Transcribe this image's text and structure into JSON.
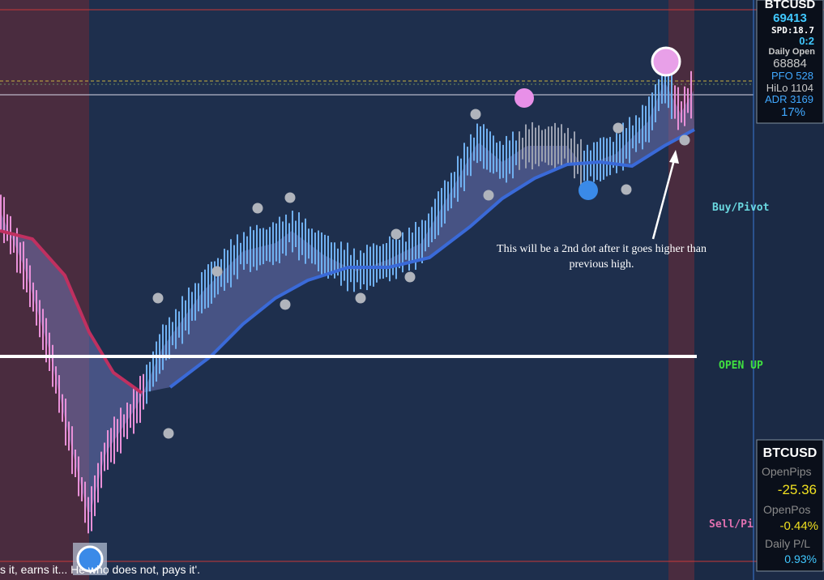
{
  "header": {
    "symbol": "BTCUSD",
    "price": "69413",
    "spread": "SPD:18.7",
    "timer": "0:2",
    "daily_open_label": "Daily Open",
    "daily_open": "68884",
    "pfo": "PFO 528",
    "hilo": "HiLo 1104",
    "adr": "ADR 3169",
    "adr_pct": "17%"
  },
  "labels": {
    "buy_pivot": "Buy/Pivot",
    "open_up": "OPEN UP",
    "sell_pivot": "Sell/Pi",
    "annotation": "This will be a 2nd dot after it goes higher than previous high.",
    "ticker": "s it, earns it... He who does not, pays it'."
  },
  "panel": {
    "symbol": "BTCUSD",
    "open_pips_label": "OpenPips",
    "open_pips": "-25.36",
    "open_pos_label": "OpenPos",
    "open_pos": "-0.44%",
    "daily_pl_label": "Daily P/L",
    "daily_pl": "0.93%"
  }
}
